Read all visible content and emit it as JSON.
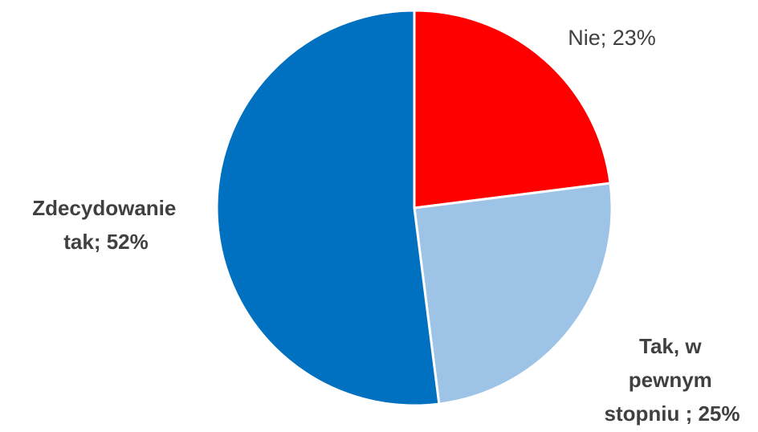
{
  "chart_data": {
    "type": "pie",
    "start_angle_deg": 0,
    "direction": "clockwise",
    "slices": [
      {
        "name": "Nie",
        "value": 23,
        "label_lines": [
          "Nie; 23%"
        ],
        "color": "#ff0000",
        "bold": false
      },
      {
        "name": "Tak, w pewnym stopniu",
        "value": 25,
        "label_lines": [
          "Tak, w",
          "pewnym",
          "stopniu ; 25%"
        ],
        "color": "#9dc3e6",
        "bold": true
      },
      {
        "name": "Zdecydowanie tak",
        "value": 52,
        "label_lines": [
          "Zdecydowanie",
          "tak; 52%"
        ],
        "color": "#0070c0",
        "bold": true
      }
    ]
  }
}
